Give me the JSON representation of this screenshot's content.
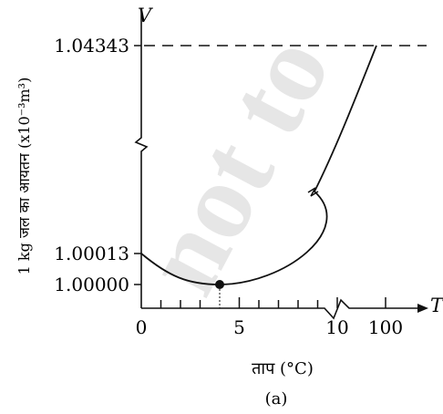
{
  "chart_data": {
    "type": "line",
    "axis_symbols": {
      "y": "V",
      "x": "T"
    },
    "ylabel": "1 kg जल का आयतन   (x10⁻³m³)",
    "xlabel": "ताप  (°C)",
    "caption": "(a)",
    "watermark": "not to",
    "y_ticks": [
      {
        "label": "1.04343",
        "value": 1.04343
      },
      {
        "label": "1.00013",
        "value": 1.00013
      },
      {
        "label": "1.00000",
        "value": 1.0
      }
    ],
    "x_ticks": [
      {
        "label": "0",
        "value": 0
      },
      {
        "label": "5",
        "value": 5
      },
      {
        "label": "10",
        "value": 10
      },
      {
        "label": "100",
        "value": 100
      }
    ],
    "minimum_point": {
      "x": 4,
      "y": 1.0
    },
    "axis_breaks": {
      "y": true,
      "x": true
    },
    "series": [
      {
        "x": [
          0,
          1,
          2,
          3,
          4,
          5,
          6,
          7,
          8,
          9,
          10,
          11,
          12,
          30,
          50,
          70,
          85,
          95
        ],
        "y": [
          1.00013,
          1.00007,
          1.00003,
          1.00001,
          1.0,
          1.00001,
          1.00003,
          1.00007,
          1.00012,
          1.00019,
          1.00027,
          1.00037,
          1.00048,
          1.004,
          1.0121,
          1.0228,
          1.0325,
          1.04343
        ]
      }
    ],
    "colors": {
      "line": "#111111",
      "background": "#ffffff"
    }
  }
}
